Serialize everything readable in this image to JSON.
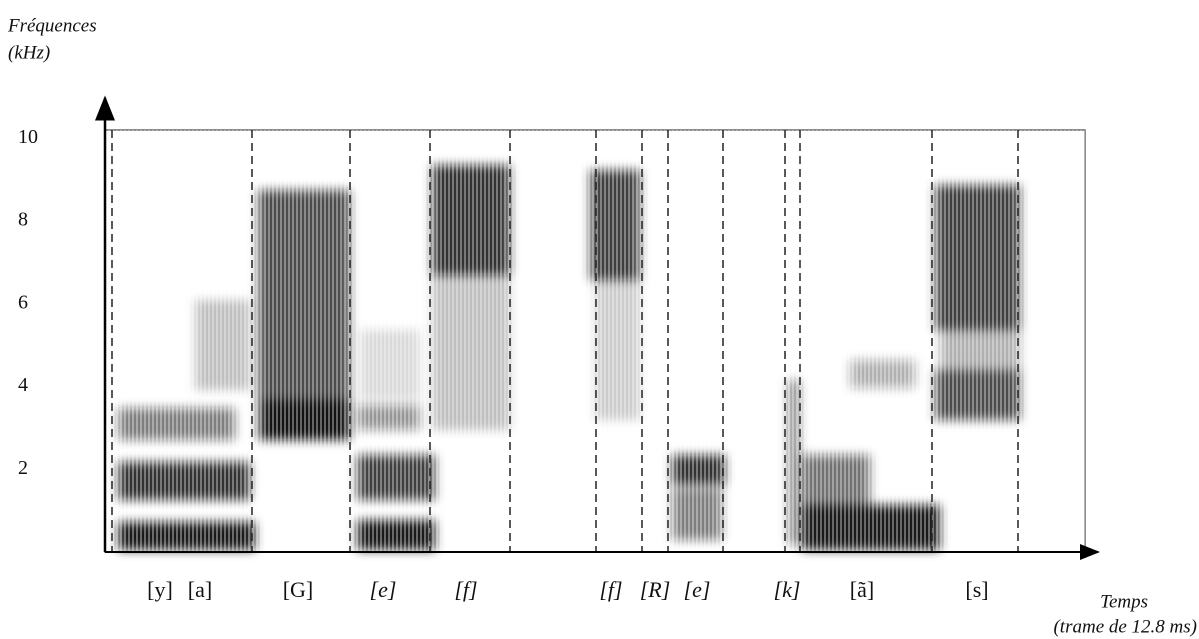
{
  "chart_data": {
    "type": "spectrogram",
    "y_label": [
      "Fréquences",
      "(kHz)"
    ],
    "x_label": [
      "Temps",
      "(trame de 12.8 ms)"
    ],
    "ylim": [
      0,
      10.2
    ],
    "yticks": [
      2,
      4,
      6,
      8,
      10
    ],
    "categories": [
      "[y]",
      "[a]",
      "[G]",
      "[e]",
      "[f]",
      "[f]",
      "[R]",
      "[e]",
      "[k]",
      "[ã]",
      "[s]"
    ],
    "color": "#111111"
  }
}
